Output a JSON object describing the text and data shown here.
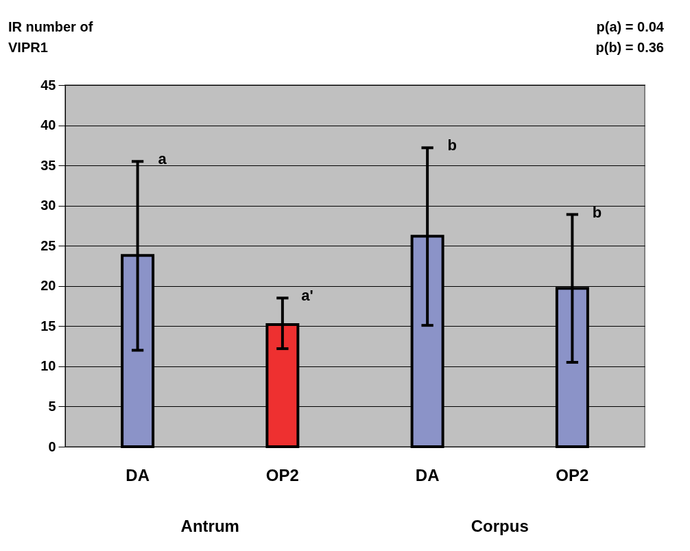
{
  "chart_data": {
    "type": "bar",
    "ylabel": "IR number of VIPR1",
    "categories": [
      "DA",
      "OP2",
      "DA",
      "OP2"
    ],
    "values": [
      23.8,
      15.2,
      26.2,
      19.7
    ],
    "colors": [
      "#8b93c8",
      "#ee3030",
      "#8b93c8",
      "#8b93c8"
    ],
    "errors": [
      [
        12.0,
        35.5
      ],
      [
        12.2,
        18.5
      ],
      [
        15.1,
        37.2
      ],
      [
        10.5,
        28.9
      ]
    ],
    "ylim": [
      0,
      45
    ],
    "yticks": [
      0,
      5,
      10,
      15,
      20,
      25,
      30,
      35,
      40,
      45
    ],
    "grid": "y",
    "annotations": [
      "a",
      "a'",
      "b",
      "b",
      "p(a) = 0.04",
      "p(b) = 0.36",
      "Antrum",
      "Corpus"
    ]
  }
}
